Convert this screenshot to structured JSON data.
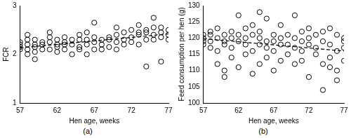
{
  "chart_data": [
    {
      "type": "scatter",
      "subtitle": "(a)",
      "x_label": "Hen age, weeks",
      "y_label": "FCR",
      "xlim": [
        57,
        77
      ],
      "xticks": [
        57,
        62,
        67,
        72,
        77
      ],
      "ylim": [
        1,
        3
      ],
      "yticks": [
        1,
        2,
        3
      ],
      "grid": false,
      "series": [
        {
          "type": "scatter",
          "marker": "circle",
          "color": "#000000",
          "x": [
            57,
            57,
            57,
            57,
            58,
            58,
            58,
            58,
            58,
            59,
            59,
            59,
            59,
            59,
            60,
            60,
            60,
            61,
            61,
            61,
            61,
            62,
            62,
            62,
            62,
            63,
            63,
            63,
            63,
            64,
            64,
            64,
            65,
            65,
            65,
            65,
            66,
            66,
            66,
            66,
            67,
            67,
            67,
            67,
            68,
            68,
            68,
            69,
            69,
            69,
            70,
            70,
            70,
            70,
            71,
            71,
            71,
            72,
            72,
            72,
            73,
            73,
            73,
            73,
            74,
            74,
            74,
            74,
            75,
            75,
            75,
            75,
            76,
            76,
            76,
            76,
            77,
            77,
            77
          ],
          "values": [
            2.15,
            2.2,
            2.25,
            2.1,
            2.1,
            2.2,
            2.3,
            2.0,
            2.4,
            1.9,
            2.15,
            2.2,
            2.3,
            2.05,
            2.1,
            2.2,
            2.25,
            2.1,
            2.25,
            2.35,
            2.45,
            2.15,
            2.2,
            2.3,
            2.05,
            2.1,
            2.2,
            2.25,
            2.35,
            2.0,
            2.2,
            2.3,
            2.1,
            2.15,
            2.3,
            2.4,
            2.0,
            2.2,
            2.3,
            2.45,
            2.1,
            2.25,
            2.35,
            2.65,
            2.2,
            2.3,
            2.1,
            2.15,
            2.3,
            2.35,
            2.25,
            2.4,
            2.1,
            2.55,
            2.3,
            2.45,
            2.2,
            2.25,
            2.35,
            2.5,
            2.2,
            2.4,
            2.45,
            2.6,
            1.75,
            2.3,
            2.45,
            2.5,
            2.3,
            2.4,
            2.75,
            2.55,
            1.85,
            2.35,
            2.45,
            2.55,
            2.4,
            2.5,
            2.3
          ]
        },
        {
          "type": "line",
          "line_style": "dashed",
          "color": "#000000",
          "x": [
            57,
            77
          ],
          "values": [
            2.13,
            2.42
          ]
        }
      ]
    },
    {
      "type": "scatter",
      "subtitle": "(b)",
      "x_label": "Hen age, weeks",
      "y_label": "Feed consumption per hen (g)",
      "xlim": [
        57,
        77
      ],
      "xticks": [
        57,
        62,
        67,
        72,
        77
      ],
      "ylim": [
        100,
        130
      ],
      "yticks": [
        100,
        105,
        110,
        115,
        120,
        125,
        130
      ],
      "grid": false,
      "series": [
        {
          "type": "scatter",
          "marker": "circle",
          "color": "#000000",
          "x": [
            57,
            57,
            57,
            57,
            58,
            58,
            58,
            58,
            59,
            59,
            59,
            59,
            60,
            60,
            60,
            60,
            60,
            61,
            61,
            61,
            61,
            62,
            62,
            62,
            62,
            63,
            63,
            63,
            63,
            64,
            64,
            64,
            64,
            65,
            65,
            65,
            65,
            65,
            66,
            66,
            66,
            66,
            67,
            67,
            67,
            67,
            68,
            68,
            68,
            68,
            69,
            69,
            69,
            70,
            70,
            70,
            70,
            71,
            71,
            71,
            71,
            72,
            72,
            72,
            72,
            73,
            73,
            73,
            74,
            74,
            74,
            74,
            75,
            75,
            75,
            75,
            76,
            76,
            76,
            76,
            77,
            77,
            77,
            77
          ],
          "values": [
            120,
            119,
            121,
            118,
            117,
            119,
            122,
            121,
            112,
            116,
            120,
            123,
            110,
            108,
            118,
            121,
            119,
            114,
            117,
            122,
            120,
            111,
            119,
            127,
            121,
            115,
            118,
            120,
            123,
            109,
            116,
            121,
            124,
            120,
            128,
            112,
            118,
            122,
            114,
            117,
            119,
            126,
            110,
            116,
            119,
            121,
            113,
            118,
            120,
            124,
            115,
            118,
            121,
            127,
            120,
            117,
            112,
            113,
            116,
            119,
            122,
            108,
            118,
            120,
            123,
            115,
            117,
            121,
            104,
            112,
            119,
            122,
            111,
            114,
            118,
            123,
            107,
            110,
            116,
            121,
            113,
            117,
            120,
            119
          ]
        },
        {
          "type": "line",
          "line_style": "dashed",
          "color": "#000000",
          "x": [
            57,
            77
          ],
          "values": [
            119.8,
            116
          ]
        }
      ]
    }
  ]
}
